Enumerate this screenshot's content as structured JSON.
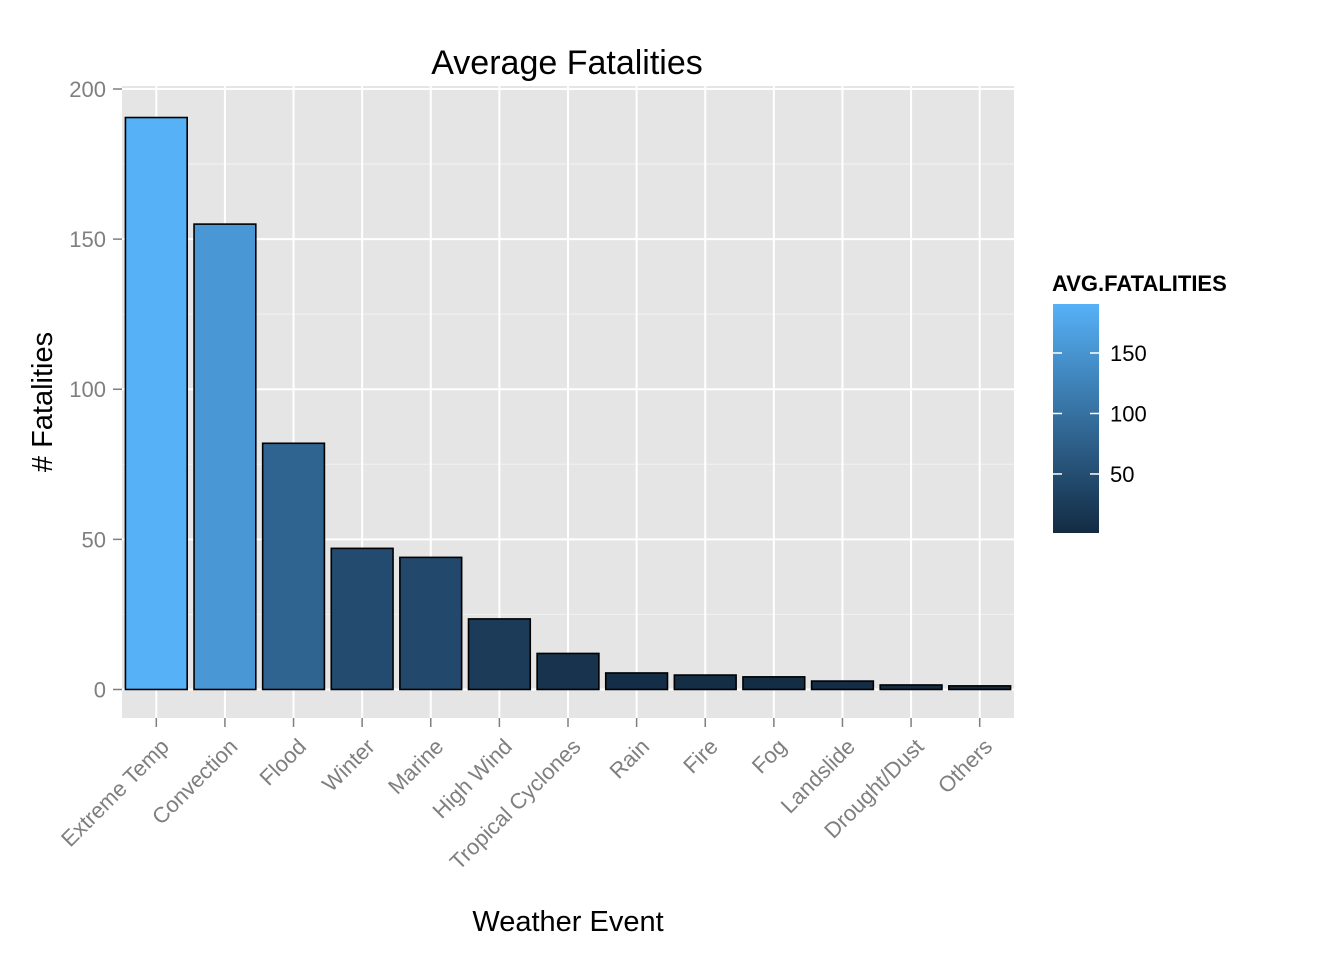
{
  "chart_data": {
    "type": "bar",
    "title": "Average Fatalities",
    "xlabel": "Weather Event",
    "ylabel": "# Fatalities",
    "categories": [
      "Extreme Temp",
      "Convection",
      "Flood",
      "Winter",
      "Marine",
      "High Wind",
      "Tropical Cyclones",
      "Rain",
      "Fire",
      "Fog",
      "Landslide",
      "Drought/Dust",
      "Others"
    ],
    "values": [
      190.5,
      155,
      82,
      47,
      44,
      23.5,
      12,
      5.5,
      4.8,
      4.2,
      2.8,
      1.5,
      1.2
    ],
    "ylim": [
      -9.5,
      201
    ],
    "yticks": [
      0,
      50,
      100,
      150,
      200
    ],
    "grid": true,
    "background": "#e5e5e5",
    "bar_outline": "#000000",
    "color_scale": {
      "low": "#132b43",
      "high": "#56b1f7",
      "min": 1.2,
      "max": 190.5
    },
    "legend": {
      "title": "AVG.FATALITIES",
      "position": "right",
      "ticks": [
        50,
        100,
        150
      ]
    }
  }
}
